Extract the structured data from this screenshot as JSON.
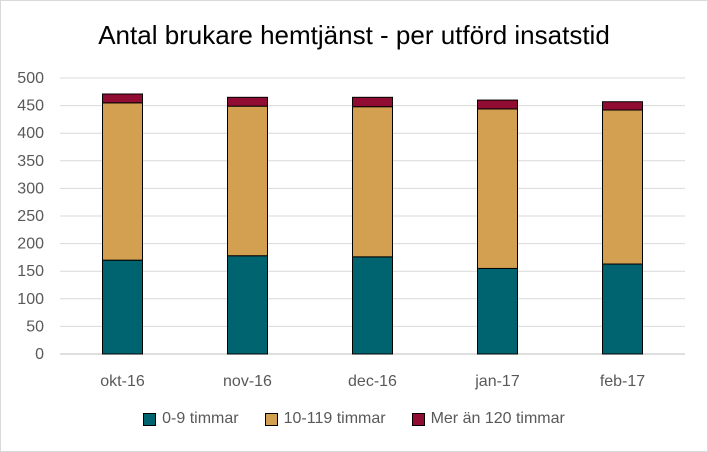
{
  "chart_data": {
    "type": "bar",
    "stacked": true,
    "title": "Antal brukare hemtjänst - per utförd insatstid",
    "xlabel": "",
    "ylabel": "",
    "ylim": [
      0,
      500
    ],
    "yticks": [
      0,
      50,
      100,
      150,
      200,
      250,
      300,
      350,
      400,
      450,
      500
    ],
    "grid": true,
    "legend_position": "bottom",
    "categories": [
      "okt-16",
      "nov-16",
      "dec-16",
      "jan-17",
      "feb-17"
    ],
    "series": [
      {
        "name": "0-9 timmar",
        "color": "#006470",
        "values": [
          170,
          178,
          176,
          155,
          163
        ]
      },
      {
        "name": "10-119 timmar",
        "color": "#D3A052",
        "values": [
          285,
          271,
          272,
          289,
          279
        ]
      },
      {
        "name": "Mer än 120 timmar",
        "color": "#900C33",
        "values": [
          16,
          16,
          17,
          16,
          15
        ]
      }
    ]
  }
}
